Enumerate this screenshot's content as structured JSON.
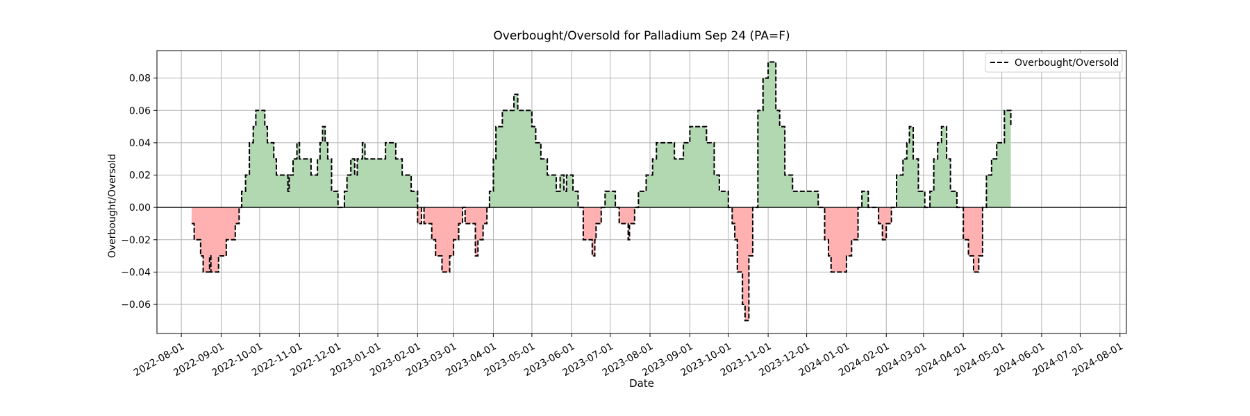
{
  "chart_data": {
    "type": "area",
    "title": "Overbought/Oversold for Palladium Sep 24 (PA=F)",
    "xlabel": "Date",
    "ylabel": "Overbought/Oversold",
    "legend": {
      "position": "top-right",
      "entries": [
        "Overbought/Oversold"
      ]
    },
    "grid": true,
    "baseline": 0,
    "xlim": [
      "2022-07-13",
      "2024-08-06"
    ],
    "ylim": [
      -0.078,
      0.097
    ],
    "x_ticks": [
      "2022-08-01",
      "2022-09-01",
      "2022-10-01",
      "2022-11-01",
      "2022-12-01",
      "2023-01-01",
      "2023-02-01",
      "2023-03-01",
      "2023-04-01",
      "2023-05-01",
      "2023-06-01",
      "2023-07-01",
      "2023-08-01",
      "2023-09-01",
      "2023-10-01",
      "2023-11-01",
      "2023-12-01",
      "2024-01-01",
      "2024-02-01",
      "2024-03-01",
      "2024-04-01",
      "2024-05-01",
      "2024-06-01",
      "2024-07-01",
      "2024-08-01"
    ],
    "y_ticks": [
      "0.08",
      "0.06",
      "0.04",
      "0.02",
      "0.00",
      "−0.02",
      "−0.04",
      "−0.06"
    ],
    "y_tick_values": [
      0.08,
      0.06,
      0.04,
      0.02,
      0.0,
      -0.02,
      -0.04,
      -0.06
    ],
    "colors": {
      "line": "#000000",
      "positive_fill": "#b1d8b1",
      "negative_fill": "#ffb1b1",
      "grid": "#b0b0b0"
    },
    "series": [
      {
        "name": "Overbought/Oversold",
        "style": "dashed-step",
        "points": [
          [
            "2022-08-09",
            -0.01
          ],
          [
            "2022-08-11",
            -0.02
          ],
          [
            "2022-08-16",
            -0.03
          ],
          [
            "2022-08-18",
            -0.04
          ],
          [
            "2022-08-23",
            -0.03
          ],
          [
            "2022-08-24",
            -0.04
          ],
          [
            "2022-08-30",
            -0.03
          ],
          [
            "2022-09-05",
            -0.02
          ],
          [
            "2022-09-12",
            -0.01
          ],
          [
            "2022-09-15",
            0.0
          ],
          [
            "2022-09-17",
            0.01
          ],
          [
            "2022-09-20",
            0.02
          ],
          [
            "2022-09-23",
            0.04
          ],
          [
            "2022-09-26",
            0.05
          ],
          [
            "2022-09-28",
            0.06
          ],
          [
            "2022-10-05",
            0.05
          ],
          [
            "2022-10-07",
            0.04
          ],
          [
            "2022-10-12",
            0.03
          ],
          [
            "2022-10-14",
            0.02
          ],
          [
            "2022-10-23",
            0.01
          ],
          [
            "2022-10-24",
            0.02
          ],
          [
            "2022-10-27",
            0.03
          ],
          [
            "2022-10-30",
            0.04
          ],
          [
            "2022-11-01",
            0.03
          ],
          [
            "2022-11-10",
            0.02
          ],
          [
            "2022-11-15",
            0.03
          ],
          [
            "2022-11-17",
            0.04
          ],
          [
            "2022-11-19",
            0.05
          ],
          [
            "2022-11-21",
            0.04
          ],
          [
            "2022-11-23",
            0.03
          ],
          [
            "2022-11-26",
            0.01
          ],
          [
            "2022-12-01",
            0.0
          ],
          [
            "2022-12-06",
            0.01
          ],
          [
            "2022-12-08",
            0.02
          ],
          [
            "2022-12-11",
            0.03
          ],
          [
            "2022-12-14",
            0.02
          ],
          [
            "2022-12-16",
            0.03
          ],
          [
            "2022-12-20",
            0.04
          ],
          [
            "2022-12-22",
            0.03
          ],
          [
            "2023-01-07",
            0.04
          ],
          [
            "2023-01-15",
            0.03
          ],
          [
            "2023-01-20",
            0.02
          ],
          [
            "2023-01-27",
            0.01
          ],
          [
            "2023-02-01",
            -0.01
          ],
          [
            "2023-02-04",
            0.0
          ],
          [
            "2023-02-06",
            -0.01
          ],
          [
            "2023-02-12",
            -0.02
          ],
          [
            "2023-02-15",
            -0.03
          ],
          [
            "2023-02-20",
            -0.04
          ],
          [
            "2023-02-26",
            -0.03
          ],
          [
            "2023-03-01",
            -0.02
          ],
          [
            "2023-03-05",
            -0.01
          ],
          [
            "2023-03-08",
            0.0
          ],
          [
            "2023-03-10",
            -0.01
          ],
          [
            "2023-03-15",
            -0.01
          ],
          [
            "2023-03-18",
            -0.03
          ],
          [
            "2023-03-20",
            -0.02
          ],
          [
            "2023-03-24",
            -0.01
          ],
          [
            "2023-03-27",
            0.0
          ],
          [
            "2023-03-29",
            0.01
          ],
          [
            "2023-04-01",
            0.03
          ],
          [
            "2023-04-03",
            0.05
          ],
          [
            "2023-04-08",
            0.06
          ],
          [
            "2023-04-17",
            0.07
          ],
          [
            "2023-04-20",
            0.06
          ],
          [
            "2023-05-01",
            0.05
          ],
          [
            "2023-05-04",
            0.04
          ],
          [
            "2023-05-08",
            0.03
          ],
          [
            "2023-05-13",
            0.02
          ],
          [
            "2023-05-20",
            0.01
          ],
          [
            "2023-05-23",
            0.02
          ],
          [
            "2023-05-26",
            0.01
          ],
          [
            "2023-05-28",
            0.02
          ],
          [
            "2023-06-02",
            0.01
          ],
          [
            "2023-06-06",
            0.0
          ],
          [
            "2023-06-10",
            -0.02
          ],
          [
            "2023-06-17",
            -0.03
          ],
          [
            "2023-06-19",
            -0.02
          ],
          [
            "2023-06-20",
            -0.01
          ],
          [
            "2023-06-24",
            0.0
          ],
          [
            "2023-06-27",
            0.01
          ],
          [
            "2023-07-05",
            0.0
          ],
          [
            "2023-07-08",
            -0.01
          ],
          [
            "2023-07-15",
            -0.02
          ],
          [
            "2023-07-16",
            -0.01
          ],
          [
            "2023-07-20",
            0.0
          ],
          [
            "2023-07-23",
            0.01
          ],
          [
            "2023-07-29",
            0.02
          ],
          [
            "2023-08-03",
            0.03
          ],
          [
            "2023-08-06",
            0.04
          ],
          [
            "2023-08-20",
            0.03
          ],
          [
            "2023-08-27",
            0.04
          ],
          [
            "2023-09-01",
            0.05
          ],
          [
            "2023-09-14",
            0.04
          ],
          [
            "2023-09-20",
            0.02
          ],
          [
            "2023-09-24",
            0.01
          ],
          [
            "2023-10-01",
            0.0
          ],
          [
            "2023-10-04",
            -0.01
          ],
          [
            "2023-10-06",
            -0.02
          ],
          [
            "2023-10-08",
            -0.04
          ],
          [
            "2023-10-12",
            -0.06
          ],
          [
            "2023-10-14",
            -0.07
          ],
          [
            "2023-10-17",
            -0.03
          ],
          [
            "2023-10-20",
            0.0
          ],
          [
            "2023-10-24",
            0.06
          ],
          [
            "2023-10-28",
            0.08
          ],
          [
            "2023-11-01",
            0.09
          ],
          [
            "2023-11-07",
            0.06
          ],
          [
            "2023-11-10",
            0.05
          ],
          [
            "2023-11-14",
            0.02
          ],
          [
            "2023-11-20",
            0.01
          ],
          [
            "2023-12-10",
            0.0
          ],
          [
            "2023-12-15",
            -0.02
          ],
          [
            "2023-12-18",
            -0.03
          ],
          [
            "2023-12-20",
            -0.04
          ],
          [
            "2024-01-01",
            -0.03
          ],
          [
            "2024-01-05",
            -0.02
          ],
          [
            "2024-01-10",
            0.0
          ],
          [
            "2024-01-13",
            0.01
          ],
          [
            "2024-01-18",
            0.0
          ],
          [
            "2024-01-26",
            -0.01
          ],
          [
            "2024-01-29",
            -0.02
          ],
          [
            "2024-02-01",
            -0.01
          ],
          [
            "2024-02-05",
            0.0
          ],
          [
            "2024-02-09",
            0.02
          ],
          [
            "2024-02-14",
            0.03
          ],
          [
            "2024-02-17",
            0.04
          ],
          [
            "2024-02-19",
            0.05
          ],
          [
            "2024-02-22",
            0.03
          ],
          [
            "2024-02-26",
            0.01
          ],
          [
            "2024-03-02",
            0.0
          ],
          [
            "2024-03-06",
            0.01
          ],
          [
            "2024-03-09",
            0.03
          ],
          [
            "2024-03-12",
            0.04
          ],
          [
            "2024-03-15",
            0.05
          ],
          [
            "2024-03-19",
            0.03
          ],
          [
            "2024-03-22",
            0.01
          ],
          [
            "2024-03-27",
            0.0
          ],
          [
            "2024-04-01",
            -0.02
          ],
          [
            "2024-04-05",
            -0.03
          ],
          [
            "2024-04-09",
            -0.04
          ],
          [
            "2024-04-13",
            -0.03
          ],
          [
            "2024-04-16",
            0.0
          ],
          [
            "2024-04-19",
            0.02
          ],
          [
            "2024-04-23",
            0.03
          ],
          [
            "2024-04-27",
            0.04
          ],
          [
            "2024-05-03",
            0.06
          ],
          [
            "2024-05-08",
            0.05
          ]
        ]
      }
    ]
  }
}
